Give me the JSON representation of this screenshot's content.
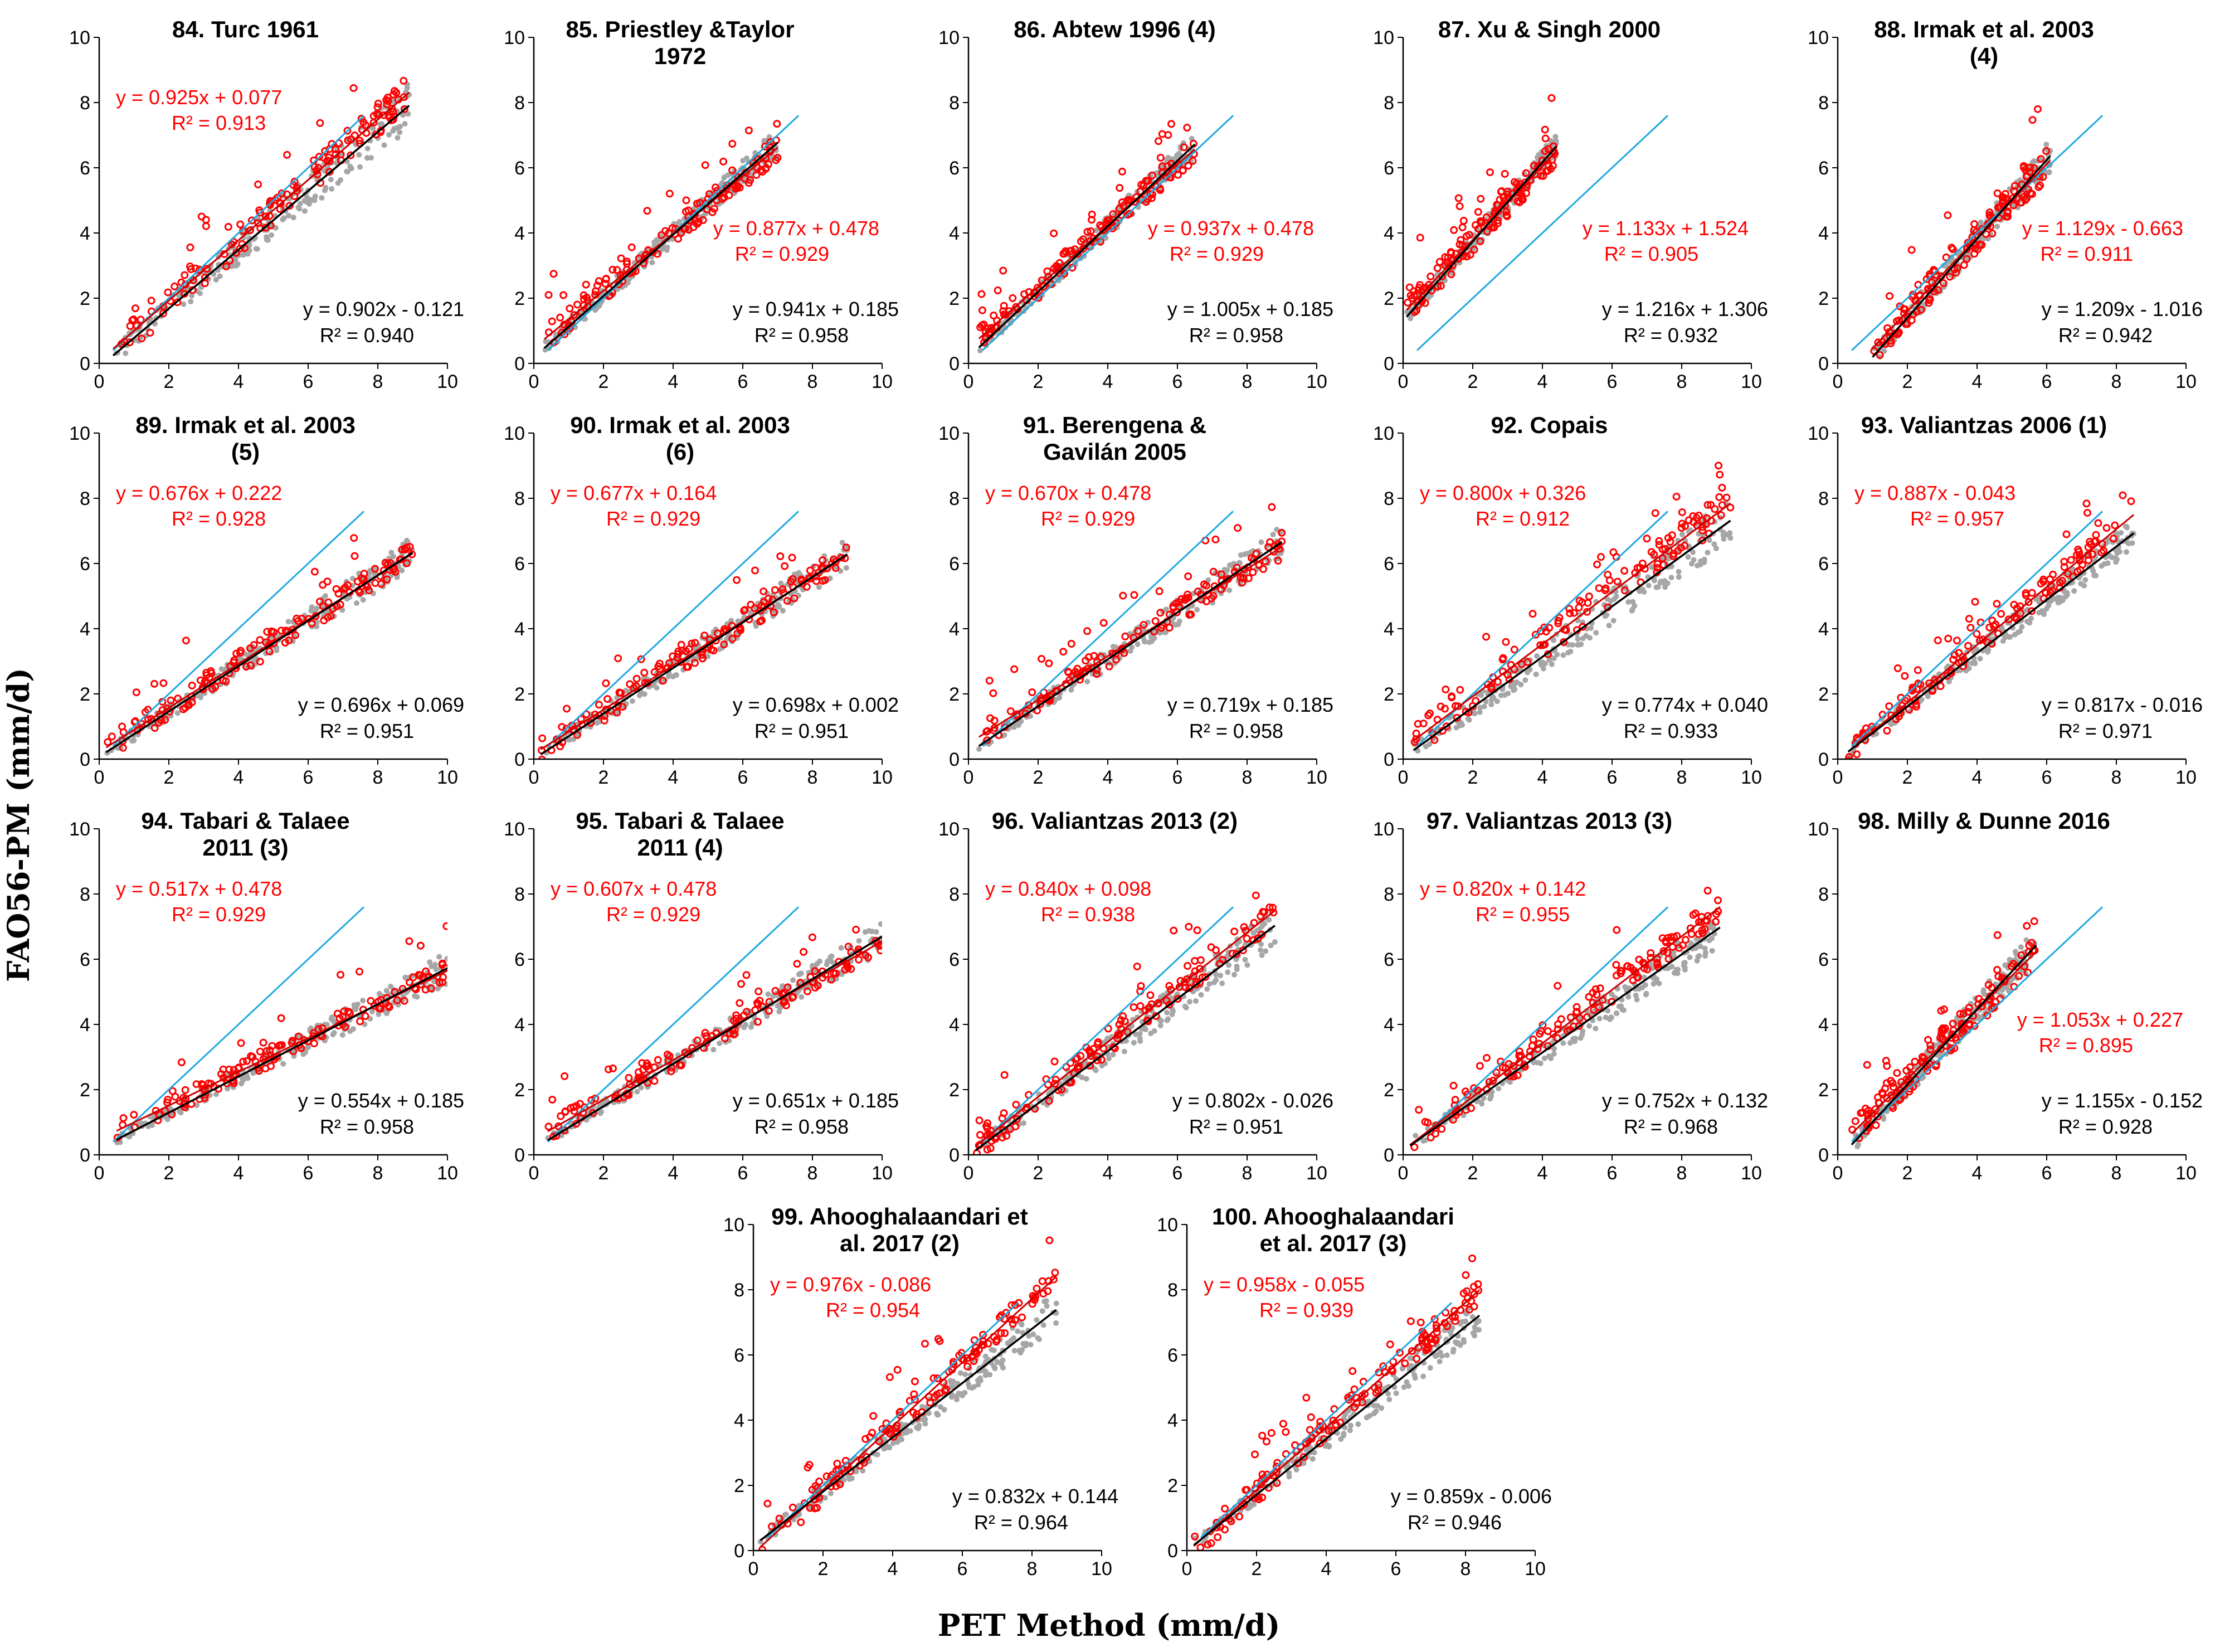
{
  "figure": {
    "y_axis_label": "FAO56-PM (mm/d)",
    "x_axis_label": "PET Method (mm/d)",
    "colors": {
      "gray_points": "#a6a6a6",
      "red_points": "#ff0000",
      "one_to_one_line": "#1fa8e0",
      "black_fit": "#000000",
      "red_fit": "#cc0000"
    }
  },
  "chart_data": [
    {
      "type": "scatter",
      "id": "84",
      "title": [
        "84. Turc 1961"
      ],
      "xlim": [
        0,
        10
      ],
      "ylim": [
        0,
        10
      ],
      "ticks": [
        0,
        2,
        4,
        6,
        8,
        10
      ],
      "red_fit": {
        "slope": 0.925,
        "intercept": 0.077,
        "eq": "y = 0.925x + 0.077",
        "r2": "R² = 0.913"
      },
      "black_fit": {
        "slope": 0.902,
        "intercept": -0.121,
        "eq": "y = 0.902x - 0.121",
        "r2": "R² = 0.940"
      },
      "x_range": [
        0.4,
        8.9
      ],
      "red_label_pos": "top-left",
      "spread": 0.55
    },
    {
      "type": "scatter",
      "id": "85",
      "title": [
        "85. Priestley &Taylor",
        "1972"
      ],
      "xlim": [
        0,
        10
      ],
      "ylim": [
        0,
        10
      ],
      "ticks": [
        0,
        2,
        4,
        6,
        8,
        10
      ],
      "red_fit": {
        "slope": 0.877,
        "intercept": 0.478,
        "eq": "y = 0.877x + 0.478",
        "r2": "R² = 0.929"
      },
      "black_fit": {
        "slope": 0.941,
        "intercept": 0.185,
        "eq": "y = 0.941x + 0.185",
        "r2": "R² = 0.958"
      },
      "x_range": [
        0.3,
        7.0
      ],
      "red_label_pos": "middle-right",
      "spread": 0.4
    },
    {
      "type": "scatter",
      "id": "86",
      "title": [
        "86. Abtew 1996 (4)"
      ],
      "xlim": [
        0,
        10
      ],
      "ylim": [
        0,
        10
      ],
      "ticks": [
        0,
        2,
        4,
        6,
        8,
        10
      ],
      "red_fit": {
        "slope": 0.937,
        "intercept": 0.478,
        "eq": "y = 0.937x + 0.478",
        "r2": "R² = 0.929"
      },
      "black_fit": {
        "slope": 1.005,
        "intercept": 0.185,
        "eq": "y = 1.005x + 0.185",
        "r2": "R² = 0.958"
      },
      "x_range": [
        0.3,
        6.5
      ],
      "red_label_pos": "middle-right",
      "spread": 0.4
    },
    {
      "type": "scatter",
      "id": "87",
      "title": [
        "87. Xu & Singh 2000"
      ],
      "xlim": [
        0,
        10
      ],
      "ylim": [
        0,
        10
      ],
      "ticks": [
        0,
        2,
        4,
        6,
        8,
        10
      ],
      "red_fit": {
        "slope": 1.133,
        "intercept": 1.524,
        "eq": "y = 1.133x + 1.524",
        "r2": "R² = 0.905"
      },
      "black_fit": {
        "slope": 1.216,
        "intercept": 1.306,
        "eq": "y = 1.216x + 1.306",
        "r2": "R² = 0.932"
      },
      "x_range": [
        0.1,
        4.4
      ],
      "red_label_pos": "middle-right",
      "spread": 0.45
    },
    {
      "type": "scatter",
      "id": "88",
      "title": [
        "88. Irmak et al. 2003",
        "(4)"
      ],
      "xlim": [
        0,
        10
      ],
      "ylim": [
        0,
        10
      ],
      "ticks": [
        0,
        2,
        4,
        6,
        8,
        10
      ],
      "red_fit": {
        "slope": 1.129,
        "intercept": -0.663,
        "eq": "y = 1.129x - 0.663",
        "r2": "R² = 0.911"
      },
      "black_fit": {
        "slope": 1.209,
        "intercept": -1.016,
        "eq": "y = 1.209x - 1.016",
        "r2": "R² = 0.942"
      },
      "x_range": [
        1.0,
        6.1
      ],
      "red_label_pos": "middle-right",
      "spread": 0.5
    },
    {
      "type": "scatter",
      "id": "89",
      "title": [
        "89. Irmak et al. 2003",
        "(5)"
      ],
      "xlim": [
        0,
        10
      ],
      "ylim": [
        0,
        10
      ],
      "ticks": [
        0,
        2,
        4,
        6,
        8,
        10
      ],
      "red_fit": {
        "slope": 0.676,
        "intercept": 0.222,
        "eq": "y = 0.676x + 0.222",
        "r2": "R² = 0.928"
      },
      "black_fit": {
        "slope": 0.696,
        "intercept": 0.069,
        "eq": "y = 0.696x + 0.069",
        "r2": "R² = 0.951"
      },
      "x_range": [
        0.2,
        9.0
      ],
      "red_label_pos": "top-left",
      "spread": 0.4
    },
    {
      "type": "scatter",
      "id": "90",
      "title": [
        "90. Irmak et al. 2003",
        "(6)"
      ],
      "xlim": [
        0,
        10
      ],
      "ylim": [
        0,
        10
      ],
      "ticks": [
        0,
        2,
        4,
        6,
        8,
        10
      ],
      "red_fit": {
        "slope": 0.677,
        "intercept": 0.164,
        "eq": "y = 0.677x + 0.164",
        "r2": "R² = 0.929"
      },
      "black_fit": {
        "slope": 0.698,
        "intercept": 0.002,
        "eq": "y = 0.698x + 0.002",
        "r2": "R² = 0.951"
      },
      "x_range": [
        0.2,
        9.0
      ],
      "red_label_pos": "top-left",
      "spread": 0.4
    },
    {
      "type": "scatter",
      "id": "91",
      "title": [
        "91. Berengena &",
        "Gavilán 2005"
      ],
      "xlim": [
        0,
        10
      ],
      "ylim": [
        0,
        10
      ],
      "ticks": [
        0,
        2,
        4,
        6,
        8,
        10
      ],
      "red_fit": {
        "slope": 0.67,
        "intercept": 0.478,
        "eq": "y = 0.670x + 0.478",
        "r2": "R² = 0.929"
      },
      "black_fit": {
        "slope": 0.719,
        "intercept": 0.185,
        "eq": "y = 0.719x + 0.185",
        "r2": "R² = 0.958"
      },
      "x_range": [
        0.3,
        9.0
      ],
      "red_label_pos": "top-left",
      "spread": 0.4
    },
    {
      "type": "scatter",
      "id": "92",
      "title": [
        "92. Copais"
      ],
      "xlim": [
        0,
        10
      ],
      "ylim": [
        0,
        10
      ],
      "ticks": [
        0,
        2,
        4,
        6,
        8,
        10
      ],
      "red_fit": {
        "slope": 0.8,
        "intercept": 0.326,
        "eq": "y = 0.800x + 0.326",
        "r2": "R² = 0.912"
      },
      "black_fit": {
        "slope": 0.774,
        "intercept": 0.04,
        "eq": "y = 0.774x + 0.040",
        "r2": "R² = 0.933"
      },
      "x_range": [
        0.3,
        9.4
      ],
      "red_label_pos": "top-left",
      "spread": 0.55
    },
    {
      "type": "scatter",
      "id": "93",
      "title": [
        "93. Valiantzas 2006 (1)"
      ],
      "xlim": [
        0,
        10
      ],
      "ylim": [
        0,
        10
      ],
      "ticks": [
        0,
        2,
        4,
        6,
        8,
        10
      ],
      "red_fit": {
        "slope": 0.887,
        "intercept": -0.043,
        "eq": "y = 0.887x - 0.043",
        "r2": "R² = 0.957"
      },
      "black_fit": {
        "slope": 0.817,
        "intercept": -0.016,
        "eq": "y = 0.817x - 0.016",
        "r2": "R² = 0.971"
      },
      "x_range": [
        0.3,
        8.5
      ],
      "red_label_pos": "top-left",
      "spread": 0.4
    },
    {
      "type": "scatter",
      "id": "94",
      "title": [
        "94. Tabari & Talaee",
        "2011 (3)"
      ],
      "xlim": [
        0,
        10
      ],
      "ylim": [
        0,
        10
      ],
      "ticks": [
        0,
        2,
        4,
        6,
        8,
        10
      ],
      "red_fit": {
        "slope": 0.517,
        "intercept": 0.478,
        "eq": "y = 0.517x + 0.478",
        "r2": "R² = 0.929"
      },
      "black_fit": {
        "slope": 0.554,
        "intercept": 0.185,
        "eq": "y = 0.554x + 0.185",
        "r2": "R² = 0.958"
      },
      "x_range": [
        0.5,
        10.0
      ],
      "red_label_pos": "top-left",
      "spread": 0.35
    },
    {
      "type": "scatter",
      "id": "95",
      "title": [
        "95. Tabari & Talaee",
        "2011 (4)"
      ],
      "xlim": [
        0,
        10
      ],
      "ylim": [
        0,
        10
      ],
      "ticks": [
        0,
        2,
        4,
        6,
        8,
        10
      ],
      "red_fit": {
        "slope": 0.607,
        "intercept": 0.478,
        "eq": "y = 0.607x + 0.478",
        "r2": "R² = 0.929"
      },
      "black_fit": {
        "slope": 0.651,
        "intercept": 0.185,
        "eq": "y = 0.651x + 0.185",
        "r2": "R² = 0.958"
      },
      "x_range": [
        0.4,
        10.0
      ],
      "red_label_pos": "top-left",
      "spread": 0.35
    },
    {
      "type": "scatter",
      "id": "96",
      "title": [
        "96. Valiantzas 2013 (2)"
      ],
      "xlim": [
        0,
        10
      ],
      "ylim": [
        0,
        10
      ],
      "ticks": [
        0,
        2,
        4,
        6,
        8,
        10
      ],
      "red_fit": {
        "slope": 0.84,
        "intercept": 0.098,
        "eq": "y = 0.840x + 0.098",
        "r2": "R² = 0.938"
      },
      "black_fit": {
        "slope": 0.802,
        "intercept": -0.026,
        "eq": "y = 0.802x - 0.026",
        "r2": "R² = 0.951"
      },
      "x_range": [
        0.2,
        8.8
      ],
      "red_label_pos": "top-left",
      "spread": 0.5
    },
    {
      "type": "scatter",
      "id": "97",
      "title": [
        "97. Valiantzas 2013 (3)"
      ],
      "xlim": [
        0,
        10
      ],
      "ylim": [
        0,
        10
      ],
      "ticks": [
        0,
        2,
        4,
        6,
        8,
        10
      ],
      "red_fit": {
        "slope": 0.82,
        "intercept": 0.142,
        "eq": "y = 0.820x + 0.142",
        "r2": "R² = 0.955"
      },
      "black_fit": {
        "slope": 0.752,
        "intercept": 0.132,
        "eq": "y = 0.752x + 0.132",
        "r2": "R² = 0.968"
      },
      "x_range": [
        0.2,
        9.1
      ],
      "red_label_pos": "top-left",
      "spread": 0.45
    },
    {
      "type": "scatter",
      "id": "98",
      "title": [
        "98. Milly & Dunne 2016"
      ],
      "xlim": [
        0,
        10
      ],
      "ylim": [
        0,
        10
      ],
      "ticks": [
        0,
        2,
        4,
        6,
        8,
        10
      ],
      "red_fit": {
        "slope": 1.053,
        "intercept": 0.227,
        "eq": "y = 1.053x + 0.227",
        "r2": "R² = 0.895"
      },
      "black_fit": {
        "slope": 1.155,
        "intercept": -0.152,
        "eq": "y = 1.155x - 0.152",
        "r2": "R² = 0.928"
      },
      "x_range": [
        0.4,
        5.7
      ],
      "red_label_pos": "middle-right",
      "spread": 0.55
    },
    {
      "type": "scatter",
      "id": "99",
      "title": [
        "99. Ahooghalaandari et",
        "al. 2017 (2)"
      ],
      "xlim": [
        0,
        10
      ],
      "ylim": [
        0,
        10
      ],
      "ticks": [
        0,
        2,
        4,
        6,
        8,
        10
      ],
      "red_fit": {
        "slope": 0.976,
        "intercept": -0.086,
        "eq": "y = 0.976x - 0.086",
        "r2": "R² = 0.954"
      },
      "black_fit": {
        "slope": 0.832,
        "intercept": 0.144,
        "eq": "y = 0.832x + 0.144",
        "r2": "R² = 0.964"
      },
      "x_range": [
        0.2,
        8.7
      ],
      "red_label_pos": "top-left",
      "spread": 0.45
    },
    {
      "type": "scatter",
      "id": "100",
      "title": [
        "100. Ahooghalaandari",
        "et al. 2017 (3)"
      ],
      "xlim": [
        0,
        10
      ],
      "ylim": [
        0,
        10
      ],
      "ticks": [
        0,
        2,
        4,
        6,
        8,
        10
      ],
      "red_fit": {
        "slope": 0.958,
        "intercept": -0.055,
        "eq": "y = 0.958x - 0.055",
        "r2": "R² = 0.939"
      },
      "black_fit": {
        "slope": 0.859,
        "intercept": -0.006,
        "eq": "y = 0.859x - 0.006",
        "r2": "R² = 0.946"
      },
      "x_range": [
        0.2,
        8.4
      ],
      "red_label_pos": "top-left",
      "spread": 0.45
    }
  ]
}
